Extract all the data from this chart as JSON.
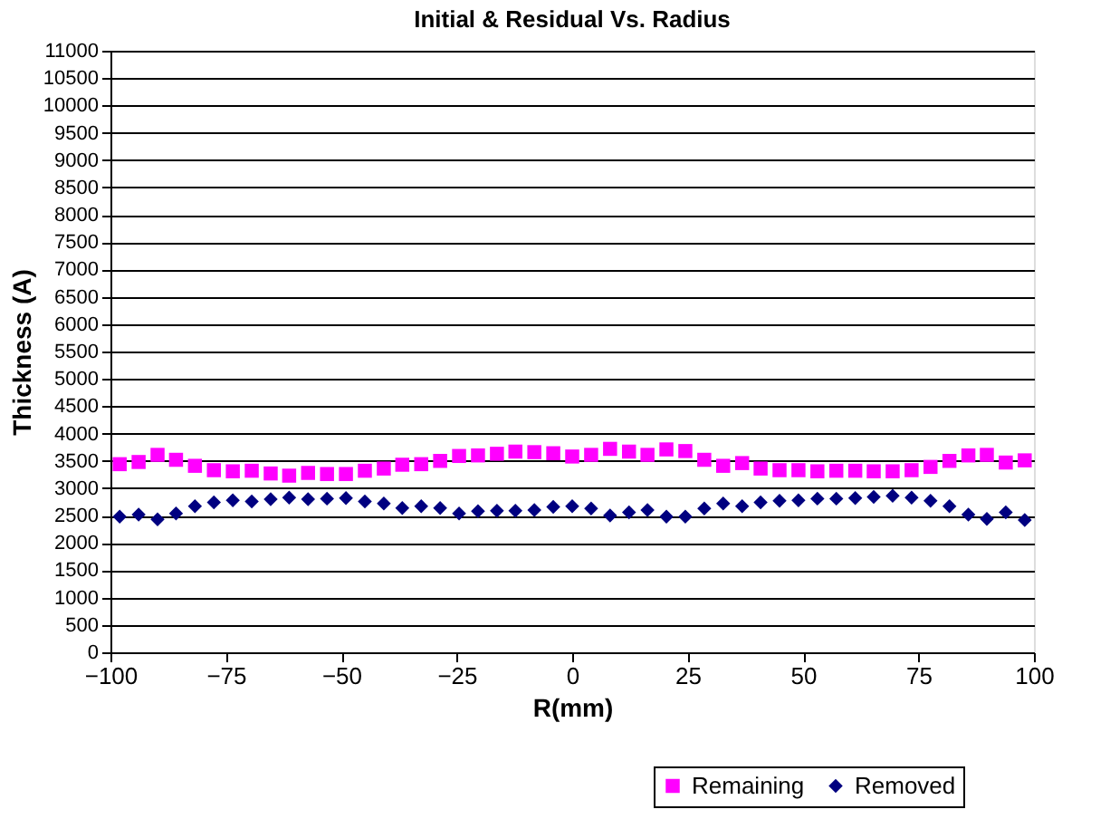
{
  "chart_data": {
    "type": "scatter",
    "title": "Initial & Residual Vs. Radius",
    "xlabel": "R(mm)",
    "ylabel": "Thickness (A)",
    "x": [
      -98,
      -93.9,
      -89.8,
      -85.8,
      -81.7,
      -77.6,
      -73.5,
      -69.4,
      -65.3,
      -61.3,
      -57.2,
      -53.1,
      -49,
      -44.9,
      -40.8,
      -36.8,
      -32.7,
      -28.6,
      -24.5,
      -20.4,
      -16.3,
      -12.3,
      -8.2,
      -4.1,
      0,
      4.1,
      8.2,
      12.3,
      16.3,
      20.4,
      24.5,
      28.6,
      32.7,
      36.8,
      40.8,
      44.9,
      49,
      53.1,
      57.2,
      61.3,
      65.3,
      69.4,
      73.5,
      77.6,
      81.7,
      85.8,
      89.8,
      93.9,
      98
    ],
    "series": [
      {
        "name": "Remaining",
        "color": "#ff00ff",
        "marker": "square",
        "values": [
          3440,
          3480,
          3610,
          3520,
          3410,
          3330,
          3310,
          3320,
          3270,
          3230,
          3280,
          3260,
          3260,
          3320,
          3360,
          3430,
          3440,
          3500,
          3590,
          3600,
          3630,
          3670,
          3660,
          3640,
          3580,
          3610,
          3720,
          3670,
          3610,
          3710,
          3680,
          3520,
          3410,
          3460,
          3360,
          3330,
          3330,
          3310,
          3320,
          3320,
          3310,
          3310,
          3330,
          3390,
          3500,
          3600,
          3610,
          3470,
          3510
        ]
      },
      {
        "name": "Removed",
        "color": "#000080",
        "marker": "diamond",
        "values": [
          2480,
          2520,
          2430,
          2540,
          2670,
          2740,
          2780,
          2760,
          2800,
          2830,
          2800,
          2810,
          2820,
          2760,
          2720,
          2640,
          2670,
          2640,
          2540,
          2580,
          2590,
          2590,
          2600,
          2660,
          2670,
          2630,
          2500,
          2560,
          2600,
          2480,
          2480,
          2630,
          2720,
          2670,
          2740,
          2770,
          2780,
          2810,
          2810,
          2820,
          2840,
          2860,
          2830,
          2770,
          2670,
          2520,
          2440,
          2560,
          2420
        ]
      }
    ],
    "xlim": [
      -100,
      100
    ],
    "xticks": [
      -100,
      -75,
      -50,
      -25,
      0,
      25,
      50,
      75,
      100
    ],
    "ylim": [
      0,
      11000
    ],
    "yticks": [
      0,
      500,
      1000,
      1500,
      2000,
      2500,
      3000,
      3500,
      4000,
      4500,
      5000,
      5500,
      6000,
      6500,
      7000,
      7500,
      8000,
      8500,
      9000,
      9500,
      10000,
      10500,
      11000
    ],
    "grid": "y",
    "legend": "bottom right"
  }
}
